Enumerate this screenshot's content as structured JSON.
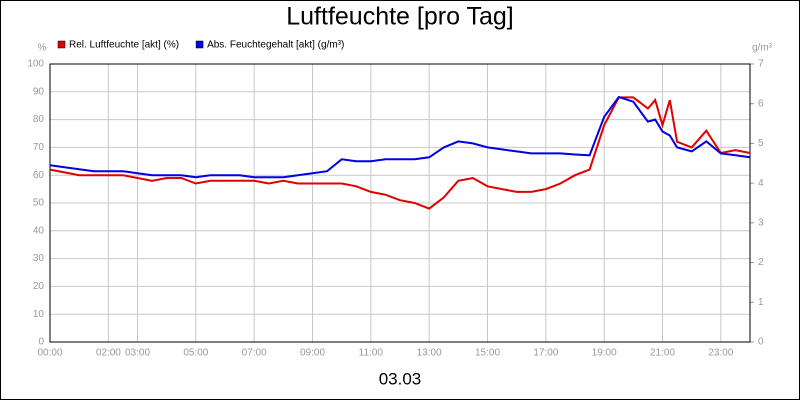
{
  "chart_data": {
    "type": "line",
    "title": "Luftfeuchte [pro Tag]",
    "subtitle": "03.03",
    "ylabel": "%",
    "y2label": "g/m³",
    "x": [
      0,
      0.5,
      1,
      1.5,
      2,
      2.5,
      3,
      3.5,
      4,
      4.5,
      5,
      5.5,
      6,
      6.5,
      7,
      7.5,
      8,
      8.5,
      9,
      9.5,
      10,
      10.5,
      11,
      11.5,
      12,
      12.5,
      13,
      13.5,
      14,
      14.5,
      15,
      15.5,
      16,
      16.5,
      17,
      17.5,
      18,
      18.5,
      19,
      19.5,
      20,
      20.5,
      20.75,
      21,
      21.25,
      21.5,
      22,
      22.5,
      23,
      23.5,
      24
    ],
    "series": [
      {
        "name": "Rel. Luftfeuchte [akt] (%)",
        "color": "#e00000",
        "values": [
          62,
          61,
          60,
          60,
          60,
          60,
          59,
          58,
          59,
          59,
          57,
          58,
          58,
          58,
          58,
          57,
          58,
          57,
          57,
          57,
          57,
          56,
          54,
          53,
          51,
          50,
          48,
          52,
          58,
          59,
          56,
          55,
          54,
          54,
          55,
          57,
          60,
          62,
          78,
          88,
          88,
          84,
          87,
          78,
          87,
          72,
          70,
          76,
          68,
          69,
          68
        ]
      },
      {
        "name": "Abs. Feuchtegehalt [akt] (g/m³)",
        "color": "#0000e0",
        "axis": "y2",
        "values": [
          4.45,
          4.4,
          4.35,
          4.3,
          4.3,
          4.3,
          4.25,
          4.2,
          4.2,
          4.2,
          4.15,
          4.2,
          4.2,
          4.2,
          4.15,
          4.15,
          4.15,
          4.2,
          4.25,
          4.3,
          4.6,
          4.55,
          4.55,
          4.6,
          4.6,
          4.6,
          4.65,
          4.9,
          5.05,
          5.0,
          4.9,
          4.85,
          4.8,
          4.75,
          4.75,
          4.75,
          4.72,
          4.7,
          5.67,
          6.17,
          6.05,
          5.55,
          5.6,
          5.3,
          5.2,
          4.9,
          4.8,
          5.05,
          4.75,
          4.7,
          4.65
        ]
      }
    ],
    "xlim": [
      0,
      24
    ],
    "xticks": [
      {
        "value": 0,
        "label": "00:00"
      },
      {
        "value": 2,
        "label": "02:00"
      },
      {
        "value": 3,
        "label": "03:00"
      },
      {
        "value": 5,
        "label": "05:00"
      },
      {
        "value": 7,
        "label": "07:00"
      },
      {
        "value": 9,
        "label": "09:00"
      },
      {
        "value": 11,
        "label": "11:00"
      },
      {
        "value": 13,
        "label": "13:00"
      },
      {
        "value": 15,
        "label": "15:00"
      },
      {
        "value": 17,
        "label": "17:00"
      },
      {
        "value": 19,
        "label": "19:00"
      },
      {
        "value": 21,
        "label": "21:00"
      },
      {
        "value": 23,
        "label": "23:00"
      }
    ],
    "ylim": [
      0,
      100
    ],
    "yticks": [
      0,
      10,
      20,
      30,
      40,
      50,
      60,
      70,
      80,
      90,
      100
    ],
    "y2lim": [
      0,
      7
    ],
    "y2ticks": [
      0,
      1,
      2,
      3,
      4,
      5,
      6,
      7
    ],
    "grid": true,
    "legend": "top-left"
  }
}
